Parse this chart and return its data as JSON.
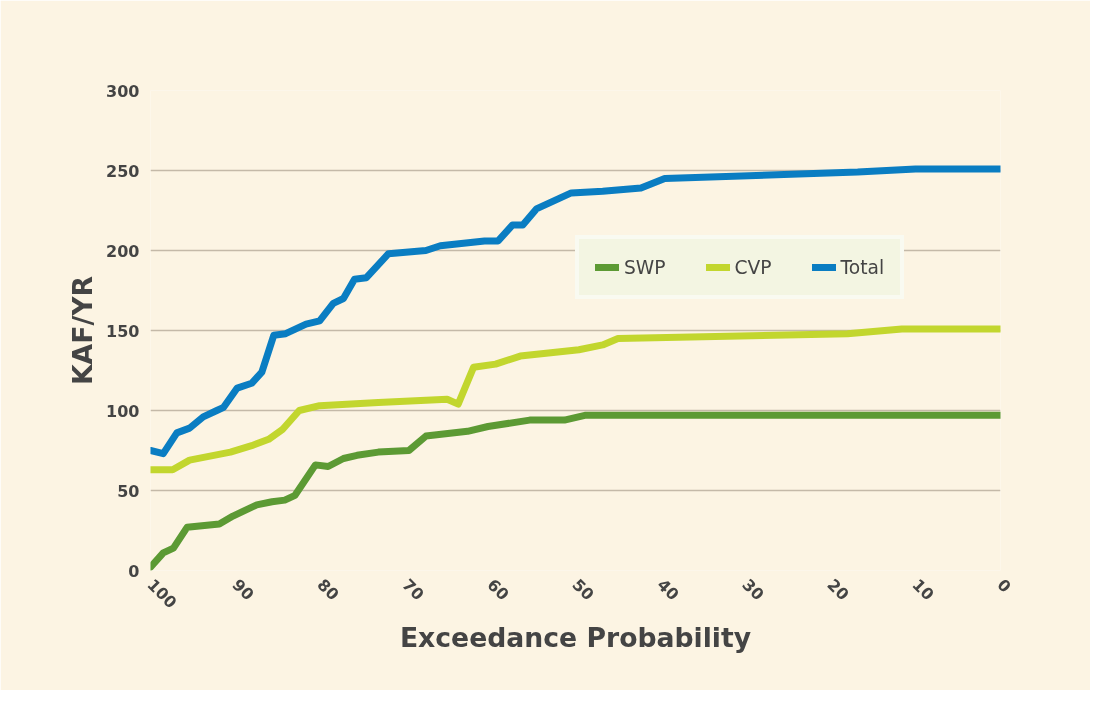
{
  "chart_data": {
    "type": "line",
    "xlabel": "Exceedance Probability",
    "ylabel": "KAF/YR",
    "xlim": [
      100,
      0
    ],
    "xticks": [
      100,
      90,
      80,
      70,
      60,
      50,
      40,
      30,
      20,
      10,
      0
    ],
    "ylim": [
      0,
      300
    ],
    "yticks": [
      0,
      50,
      100,
      150,
      200,
      250,
      300
    ],
    "grid": "y",
    "legend": "right",
    "marker": "none",
    "line_style": "solid",
    "series": [
      {
        "name": "SWP",
        "color": "#5c9a34",
        "x": [
          100,
          98.5,
          97.3,
          95.7,
          91.9,
          90.3,
          87.5,
          85.7,
          84.2,
          83,
          80.6,
          79.1,
          77.3,
          75.7,
          73.2,
          69.6,
          67.6,
          62.7,
          60.3,
          55.4,
          51.3,
          48.9,
          0
        ],
        "values": [
          2,
          11,
          14,
          27,
          29,
          34,
          41,
          43,
          44,
          47,
          66,
          65,
          70,
          72,
          74,
          75,
          84,
          87,
          90,
          94,
          94,
          97,
          97
        ]
      },
      {
        "name": "CVP",
        "color": "#c2d62e",
        "x": [
          100,
          97.4,
          95.4,
          90.6,
          88.1,
          86.1,
          84.5,
          82.5,
          80.1,
          73.2,
          65.1,
          63.8,
          62,
          59.4,
          56.5,
          49.6,
          46.8,
          45,
          18,
          11.6,
          0
        ],
        "values": [
          63,
          63,
          69,
          74,
          78,
          82,
          88,
          100,
          103,
          105,
          107,
          104,
          127,
          129,
          134,
          138,
          141,
          145,
          148,
          151,
          151
        ]
      },
      {
        "name": "Total",
        "color": "#0a7dc2",
        "x": [
          100,
          98.5,
          96.9,
          95.4,
          93.8,
          92.2,
          91.4,
          89.8,
          88.1,
          86.9,
          85.5,
          84.1,
          81.7,
          80.1,
          78.5,
          77.3,
          76,
          74.6,
          72,
          67.6,
          65.9,
          60.7,
          59.1,
          57.4,
          56.2,
          54.6,
          50.5,
          46.8,
          42.3,
          39.5,
          16.8,
          10,
          0
        ],
        "values": [
          75,
          73,
          86,
          89,
          96,
          100,
          102,
          114,
          117,
          124,
          147,
          148,
          154,
          156,
          167,
          170,
          182,
          183,
          198,
          200,
          203,
          206,
          206,
          216,
          216,
          226,
          236,
          237,
          239,
          245,
          249,
          251,
          251
        ]
      }
    ]
  }
}
